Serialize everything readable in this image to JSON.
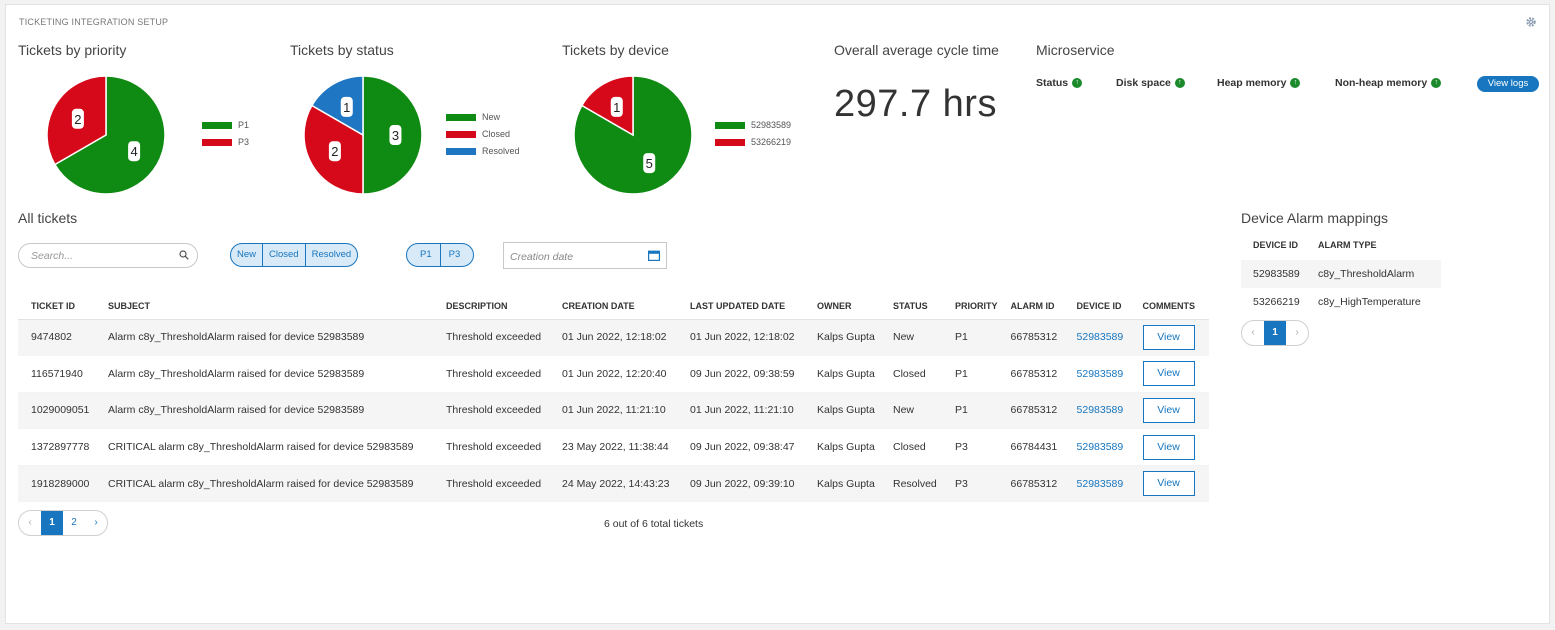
{
  "page_title": "TICKETING INTEGRATION SETUP",
  "icons": {
    "settings": "gear-icon",
    "search": "search-icon",
    "calendar": "calendar-icon",
    "status_ok": "arrow-up-circle-icon"
  },
  "colors": {
    "green": "#0f8a12",
    "red": "#d6091a",
    "blue": "#1f77c3",
    "accent": "#1776bf"
  },
  "charts": {
    "priority": {
      "title": "Tickets by priority",
      "chart_data": {
        "type": "pie",
        "labels": [
          "P1",
          "P3"
        ],
        "values": [
          4,
          2
        ],
        "value_labels": [
          "4",
          "2"
        ],
        "colors": [
          "#0f8a12",
          "#d6091a"
        ],
        "legend_position": "right"
      }
    },
    "status": {
      "title": "Tickets by status",
      "chart_data": {
        "type": "pie",
        "labels": [
          "New",
          "Closed",
          "Resolved"
        ],
        "values": [
          3,
          2,
          1
        ],
        "value_labels": [
          "3",
          "2",
          "1"
        ],
        "colors": [
          "#0f8a12",
          "#d6091a",
          "#1f77c3"
        ],
        "legend_position": "right"
      }
    },
    "device": {
      "title": "Tickets by device",
      "chart_data": {
        "type": "pie",
        "labels": [
          "52983589",
          "53266219"
        ],
        "values": [
          5,
          1
        ],
        "value_labels": [
          "5",
          "1"
        ],
        "colors": [
          "#0f8a12",
          "#d6091a"
        ],
        "legend_position": "right"
      }
    }
  },
  "cycle_time": {
    "title": "Overall average cycle time",
    "value": "297.7 hrs"
  },
  "microservice": {
    "title": "Microservice",
    "items": [
      {
        "label": "Status"
      },
      {
        "label": "Disk space"
      },
      {
        "label": "Heap memory"
      },
      {
        "label": "Non-heap memory"
      }
    ],
    "view_logs_label": "View logs"
  },
  "tickets": {
    "title": "All tickets",
    "search_placeholder": "Search...",
    "status_filters": [
      "New",
      "Closed",
      "Resolved"
    ],
    "priority_filters": [
      "P1",
      "P3"
    ],
    "date_placeholder": "Creation date",
    "columns": [
      "TICKET ID",
      "SUBJECT",
      "DESCRIPTION",
      "CREATION DATE",
      "LAST UPDATED DATE",
      "OWNER",
      "STATUS",
      "PRIORITY",
      "ALARM ID",
      "DEVICE ID",
      "COMMENTS"
    ],
    "rows": [
      {
        "id": "9474802",
        "subject": "Alarm c8y_ThresholdAlarm raised for device 52983589",
        "description": "Threshold exceeded",
        "created": "01 Jun 2022, 12:18:02",
        "updated": "01 Jun 2022, 12:18:02",
        "owner": "Kalps Gupta",
        "status": "New",
        "priority": "P1",
        "alarm_id": "66785312",
        "device_id": "52983589",
        "comment": "View"
      },
      {
        "id": "116571940",
        "subject": "Alarm c8y_ThresholdAlarm raised for device 52983589",
        "description": "Threshold exceeded",
        "created": "01 Jun 2022, 12:20:40",
        "updated": "09 Jun 2022, 09:38:59",
        "owner": "Kalps Gupta",
        "status": "Closed",
        "priority": "P1",
        "alarm_id": "66785312",
        "device_id": "52983589",
        "comment": "View"
      },
      {
        "id": "1029009051",
        "subject": "Alarm c8y_ThresholdAlarm raised for device 52983589",
        "description": "Threshold exceeded",
        "created": "01 Jun 2022, 11:21:10",
        "updated": "01 Jun 2022, 11:21:10",
        "owner": "Kalps Gupta",
        "status": "New",
        "priority": "P1",
        "alarm_id": "66785312",
        "device_id": "52983589",
        "comment": "View"
      },
      {
        "id": "1372897778",
        "subject": "CRITICAL alarm c8y_ThresholdAlarm raised for device 52983589",
        "description": "Threshold exceeded",
        "created": "23 May 2022, 11:38:44",
        "updated": "09 Jun 2022, 09:38:47",
        "owner": "Kalps Gupta",
        "status": "Closed",
        "priority": "P3",
        "alarm_id": "66784431",
        "device_id": "52983589",
        "comment": "View"
      },
      {
        "id": "1918289000",
        "subject": "CRITICAL alarm c8y_ThresholdAlarm raised for device 52983589",
        "description": "Threshold exceeded",
        "created": "24 May 2022, 14:43:23",
        "updated": "09 Jun 2022, 09:39:10",
        "owner": "Kalps Gupta",
        "status": "Resolved",
        "priority": "P3",
        "alarm_id": "66785312",
        "device_id": "52983589",
        "comment": "View"
      }
    ],
    "pagination": {
      "prev": "‹",
      "pages": [
        "1",
        "2"
      ],
      "next": "›",
      "active": "1"
    },
    "total_text": "6 out of 6 total tickets"
  },
  "mappings": {
    "title": "Device Alarm mappings",
    "columns": [
      "DEVICE ID",
      "ALARM TYPE"
    ],
    "rows": [
      {
        "device_id": "52983589",
        "alarm_type": "c8y_ThresholdAlarm"
      },
      {
        "device_id": "53266219",
        "alarm_type": "c8y_HighTemperature"
      }
    ],
    "pagination": {
      "prev": "‹",
      "pages": [
        "1"
      ],
      "next": "›",
      "active": "1"
    }
  }
}
